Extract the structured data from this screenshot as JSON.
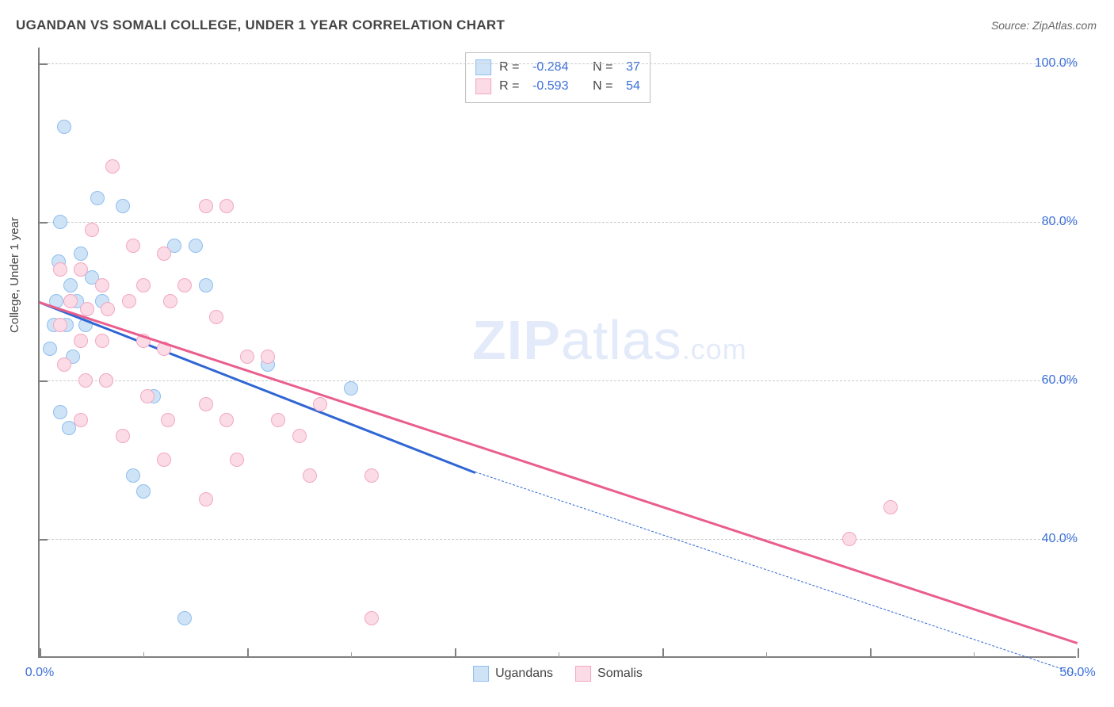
{
  "title": "UGANDAN VS SOMALI COLLEGE, UNDER 1 YEAR CORRELATION CHART",
  "source": "Source: ZipAtlas.com",
  "y_axis_label": "College, Under 1 year",
  "watermark": {
    "bold": "ZIP",
    "rest": "atlas",
    "suffix": ".com"
  },
  "chart": {
    "type": "scatter",
    "background_color": "#ffffff",
    "grid_color": "#cccccc",
    "axis_color": "#7f7f7f",
    "tick_label_color": "#3a6fd8",
    "x": {
      "min": 0,
      "max": 50,
      "labels": [
        {
          "v": 0,
          "t": "0.0%"
        },
        {
          "v": 50,
          "t": "50.0%"
        }
      ],
      "major_ticks": [
        0,
        10,
        20,
        30,
        40,
        50
      ],
      "minor_ticks": [
        5,
        15,
        25,
        35,
        45
      ]
    },
    "y": {
      "min": 25,
      "max": 102,
      "gridlines": [
        {
          "v": 40,
          "t": "40.0%"
        },
        {
          "v": 60,
          "t": "60.0%"
        },
        {
          "v": 80,
          "t": "80.0%"
        },
        {
          "v": 100,
          "t": "100.0%"
        }
      ]
    }
  },
  "series": [
    {
      "key": "ugandans",
      "label": "Ugandans",
      "fill": "#cfe3f7",
      "stroke": "#8fbef0",
      "line_color": "#2f66d4",
      "R": "-0.284",
      "N": "37",
      "trend": {
        "x0": 0,
        "y0": 70,
        "x1_solid": 21,
        "y1_solid": 48.5,
        "x1_dash": 50,
        "y1_dash": 23
      },
      "points": [
        [
          1.2,
          92
        ],
        [
          2.8,
          83
        ],
        [
          1.0,
          80
        ],
        [
          4.0,
          82
        ],
        [
          0.9,
          75
        ],
        [
          2.0,
          76
        ],
        [
          1.5,
          72
        ],
        [
          2.5,
          73
        ],
        [
          0.8,
          70
        ],
        [
          1.8,
          70
        ],
        [
          3.0,
          70
        ],
        [
          6.5,
          77
        ],
        [
          7.5,
          77
        ],
        [
          8.0,
          72
        ],
        [
          0.7,
          67
        ],
        [
          1.3,
          67
        ],
        [
          2.2,
          67
        ],
        [
          0.5,
          64
        ],
        [
          1.6,
          63
        ],
        [
          3.2,
          60
        ],
        [
          5.5,
          58
        ],
        [
          1.0,
          56
        ],
        [
          1.4,
          54
        ],
        [
          4.5,
          48
        ],
        [
          5.0,
          46
        ],
        [
          11.0,
          62
        ],
        [
          15.0,
          59
        ],
        [
          7.0,
          30
        ]
      ]
    },
    {
      "key": "somalis",
      "label": "Somalis",
      "fill": "#fadbe6",
      "stroke": "#f3a7c3",
      "line_color": "#ea5e8b",
      "R": "-0.593",
      "N": "54",
      "trend": {
        "x0": 0,
        "y0": 70,
        "x1_solid": 50,
        "y1_solid": 27
      },
      "points": [
        [
          3.5,
          87
        ],
        [
          8.0,
          82
        ],
        [
          9.0,
          82
        ],
        [
          2.5,
          79
        ],
        [
          4.5,
          77
        ],
        [
          6.0,
          76
        ],
        [
          1.0,
          74
        ],
        [
          2.0,
          74
        ],
        [
          3.0,
          72
        ],
        [
          5.0,
          72
        ],
        [
          7.0,
          72
        ],
        [
          1.5,
          70
        ],
        [
          2.3,
          69
        ],
        [
          3.3,
          69
        ],
        [
          4.3,
          70
        ],
        [
          6.3,
          70
        ],
        [
          8.5,
          68
        ],
        [
          1.0,
          67
        ],
        [
          2.0,
          65
        ],
        [
          3.0,
          65
        ],
        [
          5.0,
          65
        ],
        [
          6.0,
          64
        ],
        [
          10.0,
          63
        ],
        [
          11.0,
          63
        ],
        [
          1.2,
          62
        ],
        [
          2.2,
          60
        ],
        [
          3.2,
          60
        ],
        [
          5.2,
          58
        ],
        [
          6.2,
          55
        ],
        [
          8.0,
          57
        ],
        [
          9.0,
          55
        ],
        [
          11.5,
          55
        ],
        [
          12.5,
          53
        ],
        [
          13.5,
          57
        ],
        [
          2.0,
          55
        ],
        [
          4.0,
          53
        ],
        [
          6.0,
          50
        ],
        [
          9.5,
          50
        ],
        [
          13.0,
          48
        ],
        [
          8.0,
          45
        ],
        [
          16.0,
          48
        ],
        [
          41.0,
          44
        ],
        [
          39.0,
          40
        ],
        [
          16.0,
          30
        ]
      ]
    }
  ],
  "legend_bottom": [
    {
      "label": "Ugandans",
      "fill": "#cfe3f7",
      "stroke": "#8fbef0"
    },
    {
      "label": "Somalis",
      "fill": "#fadbe6",
      "stroke": "#f3a7c3"
    }
  ]
}
